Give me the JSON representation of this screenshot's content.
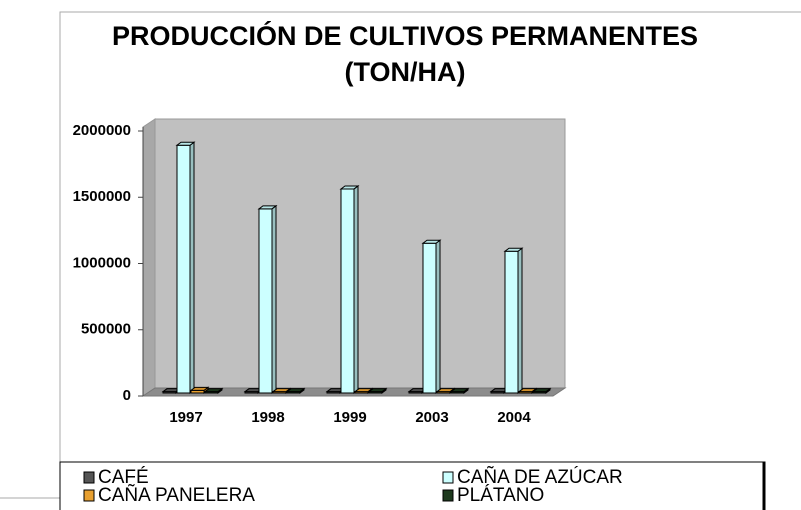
{
  "chart_data": {
    "type": "bar3d",
    "title": [
      "PRODUCCIÓN DE CULTIVOS PERMANENTES",
      "(TON/HA)"
    ],
    "categories": [
      "1997",
      "1998",
      "1999",
      "2003",
      "2004"
    ],
    "series": [
      {
        "name": "CAFÉ",
        "color": "#555555",
        "values": [
          10000,
          10000,
          10000,
          10000,
          10000
        ]
      },
      {
        "name": "CAÑA DE AZÚCAR",
        "color": "#ccffff",
        "values": [
          1870000,
          1390000,
          1540000,
          1130000,
          1070000
        ]
      },
      {
        "name": "CAÑA PANELERA",
        "color": "#e8a030",
        "values": [
          20000,
          10000,
          10000,
          10000,
          10000
        ]
      },
      {
        "name": "PLÁTANO",
        "color": "#1e3a1e",
        "values": [
          10000,
          10000,
          10000,
          10000,
          10000
        ]
      }
    ],
    "ylim": [
      0,
      2000000
    ],
    "yticks": [
      0,
      500000,
      1000000,
      1500000,
      2000000
    ]
  }
}
